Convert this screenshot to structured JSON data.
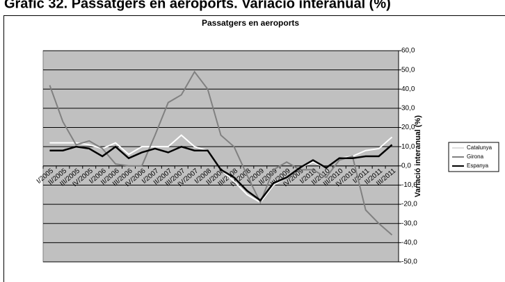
{
  "chart_data": {
    "type": "line",
    "header": "Gràfic 32. Passatgers en aeroports. Variació interanual (%)",
    "title": "Passatgers en aeroports",
    "y_label": "Variació interanual (%)",
    "categories": [
      "I/2005",
      "II/2005",
      "III/2005",
      "IV/2005",
      "I/2006",
      "II/2006",
      "III/2006",
      "IV/2006",
      "I/2007",
      "II/2007",
      "III/2007",
      "IV/2007",
      "I/2008",
      "II/2008",
      "III/2008",
      "IV/2008",
      "I/2009",
      "II/2009",
      "III/2009",
      "IV/2009",
      "I/2010",
      "II/2010",
      "III/2010",
      "IV/2010",
      "I/2011",
      "II/2011",
      "III/2011"
    ],
    "series": [
      {
        "name": "Catalunya",
        "color": "#ffffff",
        "values": [
          12,
          12,
          12,
          11,
          9,
          12,
          6,
          10,
          10,
          10,
          16,
          10,
          8,
          -2,
          -8,
          -15,
          -19,
          -10,
          -6,
          -1,
          2,
          -1,
          4,
          5,
          8,
          9,
          15
        ]
      },
      {
        "name": "Girona",
        "color": "#808080",
        "values": [
          42,
          23,
          11,
          13,
          9,
          1,
          0,
          0,
          16,
          33,
          37,
          49,
          40,
          16,
          10,
          -5,
          -19,
          -2,
          2,
          -2,
          -2,
          -6,
          3,
          5,
          -23,
          -30,
          -36
        ]
      },
      {
        "name": "Espanya",
        "color": "#000000",
        "values": [
          8,
          8,
          10,
          9,
          5,
          10,
          4,
          7,
          9,
          7,
          10,
          8,
          8,
          -2,
          -6,
          -13,
          -18,
          -9,
          -6,
          -1,
          3,
          -1,
          4,
          4,
          5,
          5,
          11
        ]
      }
    ],
    "ylim": [
      -50,
      60
    ],
    "yticks": [
      {
        "value": -50,
        "label": "-50,0"
      },
      {
        "value": -40,
        "label": "-40,0"
      },
      {
        "value": -30,
        "label": "-30,0"
      },
      {
        "value": -20,
        "label": "-20,0"
      },
      {
        "value": -10,
        "label": "-10,0"
      },
      {
        "value": 0,
        "label": "0,0"
      },
      {
        "value": 10,
        "label": "10,0"
      },
      {
        "value": 20,
        "label": "20,0"
      },
      {
        "value": 30,
        "label": "30,0"
      },
      {
        "value": 40,
        "label": "40,0"
      },
      {
        "value": 50,
        "label": "50,0"
      },
      {
        "value": 60,
        "label": "60,0"
      }
    ],
    "grid": true,
    "legend": "right",
    "plot_color": "#c0c0c0"
  }
}
